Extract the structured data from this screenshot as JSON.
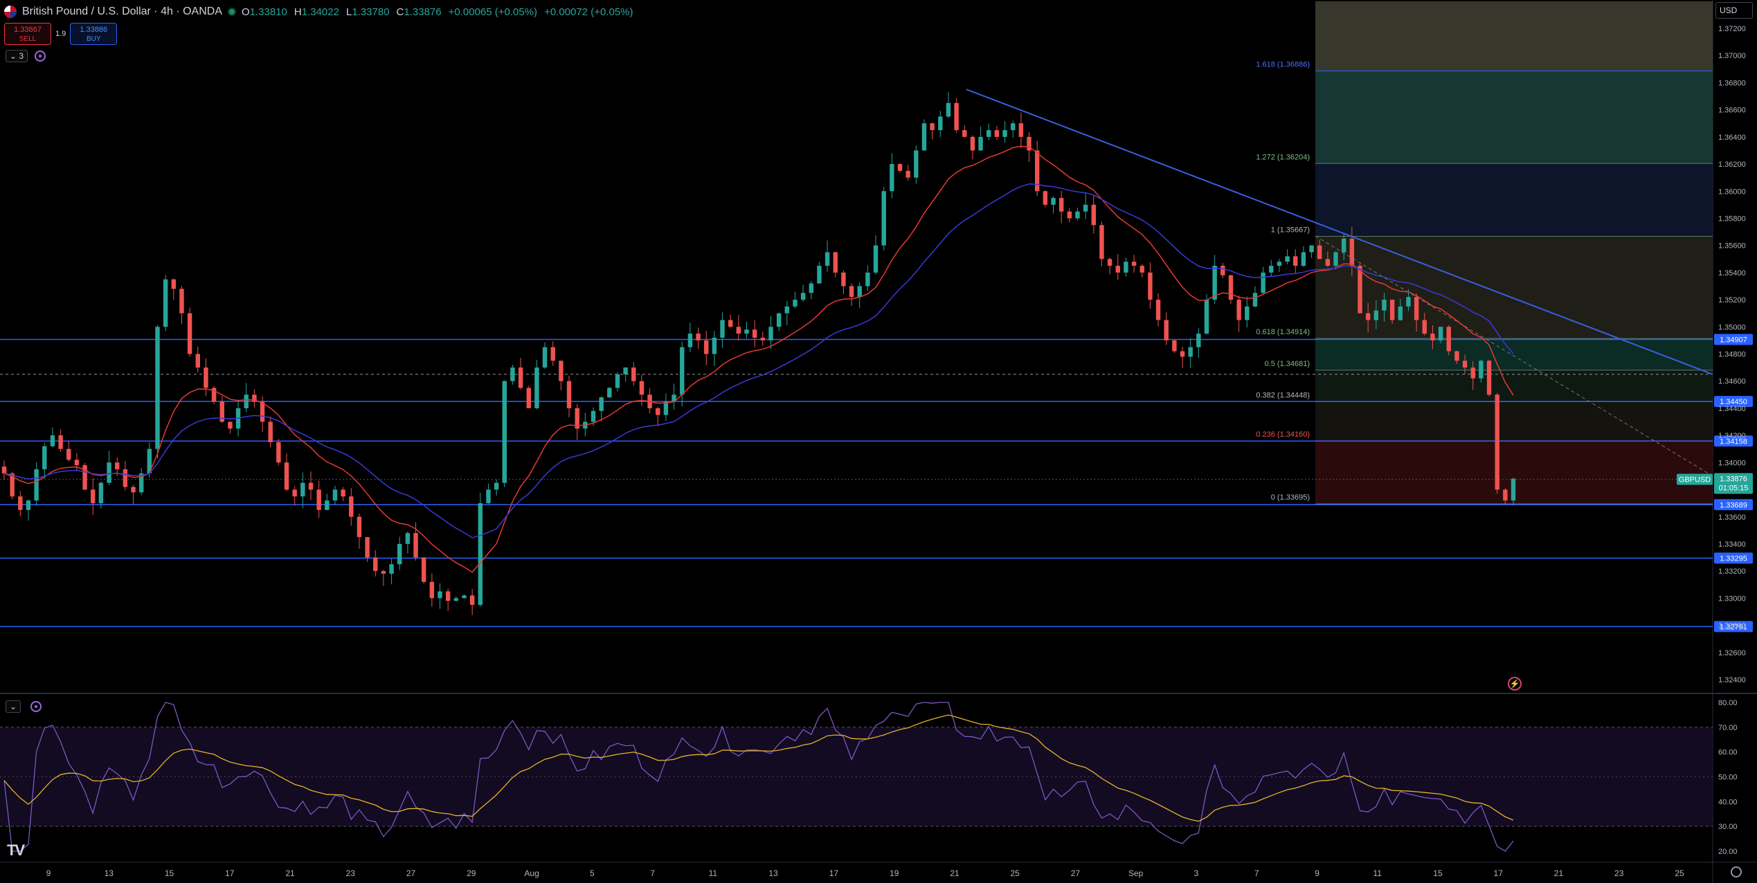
{
  "header": {
    "title": "British Pound / U.S. Dollar · 4h · OANDA",
    "ohlc": [
      {
        "label": "O",
        "value": "1.33810"
      },
      {
        "label": "H",
        "value": "1.34022"
      },
      {
        "label": "L",
        "value": "1.33780"
      },
      {
        "label": "C",
        "value": "1.33876"
      }
    ],
    "change": "+0.00065 (+0.05%)",
    "change2": "+0.00072 (+0.05%)"
  },
  "trade": {
    "sell_price": "1.33867",
    "sell_label": "SELL",
    "spread": "1.9",
    "buy_price": "1.33886",
    "buy_label": "BUY"
  },
  "indicator_toggle": {
    "count": "3",
    "collapse_icon": "chevron-down-icon"
  },
  "currency": "USD",
  "symbol_tag": {
    "label": "GBPUSD",
    "price": "1.33876",
    "countdown": "01:05:15"
  },
  "colors": {
    "up": "#26a69a",
    "down": "#ef5350",
    "hline": "#2962ff",
    "ema_red": "#e53935",
    "ema_blue": "#3a3ad8",
    "rsi": "#7e57c2",
    "rsi_ma": "#e6b42a",
    "trendline": "#3a5fe0",
    "axis_text": "#b2b5be"
  },
  "chart_data": {
    "type": "candlestick",
    "symbol": "GBPUSD",
    "timeframe": "4h",
    "ylim": [
      1.324,
      1.374
    ],
    "y_ticks": [
      "1.37200",
      "1.37000",
      "1.36800",
      "1.36600",
      "1.36400",
      "1.36200",
      "1.36000",
      "1.35800",
      "1.35600",
      "1.35400",
      "1.35200",
      "1.35000",
      "1.34800",
      "1.34600",
      "1.34400",
      "1.34200",
      "1.34000",
      "1.33800",
      "1.33600",
      "1.33400",
      "1.33200",
      "1.33000",
      "1.32800",
      "1.32600",
      "1.32400"
    ],
    "x_ticks": [
      "9",
      "13",
      "15",
      "17",
      "21",
      "23",
      "27",
      "29",
      "Aug",
      "5",
      "7",
      "11",
      "13",
      "17",
      "19",
      "21",
      "25",
      "27",
      "Sep",
      "3",
      "7",
      "9",
      "11",
      "15",
      "17",
      "21",
      "23",
      "25"
    ],
    "horizontal_levels": [
      {
        "price": 1.34907,
        "label": "1.34907"
      },
      {
        "price": 1.3445,
        "label": "1.34450"
      },
      {
        "price": 1.34158,
        "label": "1.34158"
      },
      {
        "price": 1.33689,
        "label": "1.33689"
      },
      {
        "price": 1.33295,
        "label": "1.33295"
      },
      {
        "price": 1.32791,
        "label": "1.32791"
      }
    ],
    "fibonacci": [
      {
        "level": "1.618",
        "price": 1.36886,
        "label": "1.618 (1.36886)"
      },
      {
        "level": "1.272",
        "price": 1.36204,
        "label": "1.272 (1.36204)"
      },
      {
        "level": "1",
        "price": 1.35667,
        "label": "1 (1.35667)"
      },
      {
        "level": "0.618",
        "price": 1.34914,
        "label": "0.618 (1.34914)"
      },
      {
        "level": "0.5",
        "price": 1.34681,
        "label": "0.5 (1.34681)"
      },
      {
        "level": "0.382",
        "price": 1.34448,
        "label": "0.382 (1.34448)"
      },
      {
        "level": "0.236",
        "price": 1.3416,
        "label": "0.236 (1.34160)"
      },
      {
        "level": "0",
        "price": 1.33695,
        "label": "0 (1.33695)"
      }
    ],
    "last_price": 1.33876,
    "dashed_level": 1.3465,
    "candles_anchor_close": [
      1.3392,
      1.3375,
      1.3365,
      1.3372,
      1.3395,
      1.3412,
      1.342,
      1.341,
      1.3402,
      1.3398,
      1.338,
      1.337,
      1.3385,
      1.34,
      1.3395,
      1.3382,
      1.3378,
      1.3392,
      1.341,
      1.35,
      1.3535,
      1.3528,
      1.351,
      1.348,
      1.347,
      1.3455,
      1.3445,
      1.343,
      1.3425,
      1.344,
      1.345,
      1.3445,
      1.343,
      1.3415,
      1.34,
      1.338,
      1.3375,
      1.3385,
      1.338,
      1.3365,
      1.3372,
      1.338,
      1.3375,
      1.336,
      1.3345,
      1.333,
      1.332,
      1.3318,
      1.3325,
      1.334,
      1.3348,
      1.333,
      1.3312,
      1.33,
      1.3305,
      1.3298,
      1.33,
      1.3302,
      1.3295,
      1.337,
      1.338,
      1.3385,
      1.346,
      1.347,
      1.3455,
      1.344,
      1.347,
      1.3485,
      1.3475,
      1.346,
      1.344,
      1.3425,
      1.343,
      1.3438,
      1.3448,
      1.3455,
      1.3465,
      1.347,
      1.346,
      1.345,
      1.344,
      1.3435,
      1.3445,
      1.345,
      1.3485,
      1.3495,
      1.349,
      1.348,
      1.3492,
      1.3505,
      1.35,
      1.3495,
      1.3498,
      1.3492,
      1.349,
      1.35,
      1.351,
      1.3515,
      1.352,
      1.3525,
      1.3532,
      1.3545,
      1.3555,
      1.354,
      1.353,
      1.3522,
      1.353,
      1.354,
      1.356,
      1.36,
      1.362,
      1.3615,
      1.361,
      1.363,
      1.365,
      1.3645,
      1.3655,
      1.3665,
      1.3645,
      1.364,
      1.363,
      1.364,
      1.3645,
      1.364,
      1.3645,
      1.365,
      1.364,
      1.363,
      1.36,
      1.359,
      1.3595,
      1.3585,
      1.358,
      1.3585,
      1.359,
      1.3575,
      1.355,
      1.3545,
      1.354,
      1.3548,
      1.3545,
      1.354,
      1.352,
      1.3505,
      1.349,
      1.3482,
      1.3478,
      1.3485,
      1.3495,
      1.352,
      1.3545,
      1.3538,
      1.352,
      1.3505,
      1.3515,
      1.3525,
      1.354,
      1.3545,
      1.3548,
      1.3552,
      1.3545,
      1.3555,
      1.356,
      1.355,
      1.3545,
      1.3555,
      1.3565,
      1.3545,
      1.351,
      1.3505,
      1.3512,
      1.352,
      1.3505,
      1.3515,
      1.3522,
      1.3505,
      1.3495,
      1.349,
      1.35,
      1.3482,
      1.3475,
      1.347,
      1.3462,
      1.3475,
      1.345,
      1.338,
      1.3372,
      1.3388
    ],
    "rsi": {
      "ylim": [
        15,
        85
      ],
      "y_ticks": [
        "80.00",
        "70.00",
        "60.00",
        "50.00",
        "40.00",
        "30.00",
        "20.00"
      ],
      "bands": [
        70,
        30
      ],
      "mid": 50
    }
  }
}
